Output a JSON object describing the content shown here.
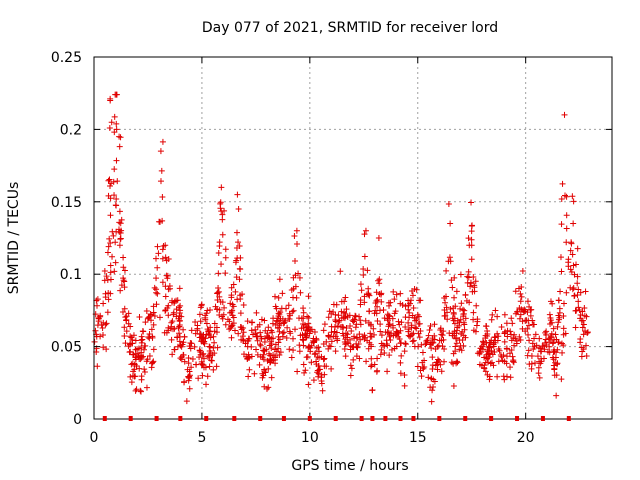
{
  "chart_data": {
    "type": "scatter",
    "title": "Day 077 of 2021, SRMTID for receiver lord",
    "xlabel": "GPS time / hours",
    "ylabel": "SRMTID / TECUs",
    "xlim": [
      0,
      24
    ],
    "ylim": [
      0,
      0.25
    ],
    "xticks": [
      0,
      5,
      10,
      15,
      20
    ],
    "xtick_labels": [
      "0",
      "5",
      "10",
      "15",
      "20"
    ],
    "yticks": [
      0,
      0.05,
      0.1,
      0.15,
      0.2,
      0.25
    ],
    "ytick_labels": [
      "0",
      "0.05",
      "0.1",
      "0.15",
      "0.2",
      "0.25"
    ],
    "grid": true,
    "marker": "+",
    "color": "#e00000",
    "baseline_markers_x": [
      0.5,
      1.7,
      2.9,
      4.0,
      5.2,
      6.5,
      7.7,
      8.8,
      10.0,
      11.2,
      12.4,
      12.9,
      13.5,
      14.2,
      14.8,
      16.0,
      17.2,
      18.4,
      19.6,
      20.8,
      22.0
    ],
    "peaks": [
      {
        "x": 0.75,
        "y": 0.22
      },
      {
        "x": 1.05,
        "y": 0.2
      },
      {
        "x": 1.2,
        "y": 0.12
      },
      {
        "x": 3.1,
        "y": 0.185
      },
      {
        "x": 3.3,
        "y": 0.12
      },
      {
        "x": 5.9,
        "y": 0.16
      },
      {
        "x": 6.7,
        "y": 0.145
      },
      {
        "x": 9.4,
        "y": 0.13
      },
      {
        "x": 12.6,
        "y": 0.13
      },
      {
        "x": 13.2,
        "y": 0.125
      },
      {
        "x": 16.5,
        "y": 0.135
      },
      {
        "x": 17.5,
        "y": 0.12
      },
      {
        "x": 21.8,
        "y": 0.21
      },
      {
        "x": 22.2,
        "y": 0.135
      }
    ],
    "series": [
      {
        "name": "SRMTID",
        "generated": true,
        "baseline": 0.055,
        "spread": 0.022,
        "x_range": [
          0,
          22.9
        ],
        "n_points": 1500,
        "seed": 77
      }
    ]
  }
}
